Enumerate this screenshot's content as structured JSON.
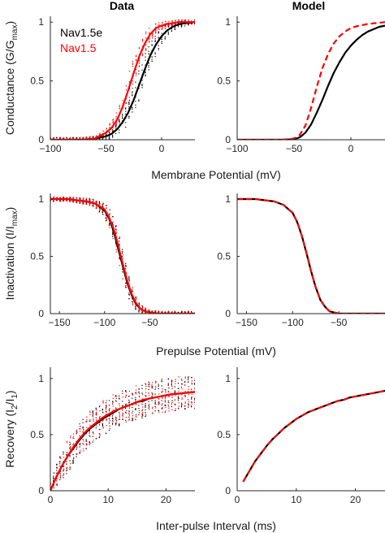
{
  "figure": {
    "column_titles": [
      "Data",
      "Model"
    ],
    "legend": [
      {
        "label": "Nav1.5e",
        "color": "#000000"
      },
      {
        "label": "Nav1.5",
        "color": "#ff0000"
      }
    ],
    "row_xlabels": [
      "Membrane Potential (mV)",
      "Prepulse Potential (mV)",
      "Inter-pulse Interval (ms)"
    ]
  },
  "chart_data": [
    {
      "type": "scatter",
      "panel": "Data",
      "row": 1,
      "ylabel_parts": [
        "Conductance (G/G",
        "max",
        ")"
      ],
      "xlim": [
        -100,
        30
      ],
      "ylim": [
        0,
        1.05
      ],
      "xticks": [
        -100,
        -50,
        0
      ],
      "yticks": [
        0,
        0.5,
        1
      ],
      "series": [
        {
          "name": "Nav1.5e",
          "color": "#000000",
          "style": "solid",
          "x": [
            -100,
            -90,
            -80,
            -70,
            -60,
            -50,
            -45,
            -40,
            -35,
            -30,
            -25,
            -20,
            -15,
            -10,
            -5,
            0,
            5,
            10,
            15,
            20,
            25,
            30
          ],
          "y": [
            0,
            0,
            0,
            0,
            0.01,
            0.03,
            0.05,
            0.09,
            0.15,
            0.23,
            0.34,
            0.47,
            0.6,
            0.72,
            0.81,
            0.88,
            0.93,
            0.96,
            0.98,
            0.99,
            0.995,
            1.0
          ]
        },
        {
          "name": "Nav1.5",
          "color": "#ff0000",
          "style": "solid",
          "x": [
            -100,
            -90,
            -80,
            -70,
            -60,
            -50,
            -45,
            -40,
            -35,
            -30,
            -25,
            -20,
            -15,
            -10,
            -5,
            0,
            5,
            10,
            15,
            20,
            25,
            30
          ],
          "y": [
            0,
            0,
            0,
            0,
            0.01,
            0.06,
            0.1,
            0.17,
            0.28,
            0.42,
            0.57,
            0.71,
            0.82,
            0.9,
            0.95,
            0.97,
            0.985,
            0.99,
            1.0,
            1.0,
            1.0,
            1.0
          ]
        }
      ]
    },
    {
      "type": "line",
      "panel": "Model",
      "row": 1,
      "xlim": [
        -100,
        30
      ],
      "ylim": [
        0,
        1.05
      ],
      "xticks": [
        -100,
        -50,
        0
      ],
      "yticks": [
        0,
        0.5,
        1
      ],
      "series": [
        {
          "color": "#000000",
          "style": "solid",
          "x": [
            -100,
            -90,
            -80,
            -70,
            -60,
            -50,
            -45,
            -40,
            -35,
            -30,
            -25,
            -20,
            -15,
            -10,
            -5,
            0,
            5,
            10,
            15,
            20,
            25,
            30
          ],
          "y": [
            0,
            0,
            0,
            0,
            0,
            0.005,
            0.02,
            0.06,
            0.13,
            0.23,
            0.34,
            0.46,
            0.57,
            0.66,
            0.74,
            0.8,
            0.85,
            0.89,
            0.92,
            0.94,
            0.96,
            0.97
          ]
        },
        {
          "color": "#ff0000",
          "style": "dashed",
          "x": [
            -100,
            -90,
            -80,
            -70,
            -60,
            -50,
            -45,
            -40,
            -35,
            -30,
            -25,
            -20,
            -15,
            -10,
            -5,
            0,
            5,
            10,
            15,
            20,
            25,
            30
          ],
          "y": [
            0,
            0,
            0,
            0,
            0,
            0.01,
            0.04,
            0.12,
            0.27,
            0.45,
            0.61,
            0.73,
            0.82,
            0.88,
            0.92,
            0.95,
            0.965,
            0.975,
            0.985,
            0.99,
            0.995,
            1.0
          ]
        }
      ]
    },
    {
      "type": "scatter",
      "panel": "Data",
      "row": 2,
      "ylabel_parts": [
        "Inactivation (I/I",
        "max",
        ")"
      ],
      "xlim": [
        -160,
        0
      ],
      "ylim": [
        0,
        1.05
      ],
      "xticks": [
        -150,
        -100,
        -50
      ],
      "yticks": [
        0,
        0.5,
        1
      ],
      "series": [
        {
          "name": "Nav1.5e",
          "color": "#000000",
          "style": "solid",
          "x": [
            -160,
            -150,
            -140,
            -130,
            -120,
            -110,
            -100,
            -95,
            -90,
            -85,
            -80,
            -75,
            -70,
            -65,
            -60,
            -55,
            -50,
            -40,
            -30,
            -20,
            -10,
            0
          ],
          "y": [
            1,
            1,
            1,
            0.99,
            0.98,
            0.96,
            0.9,
            0.83,
            0.72,
            0.57,
            0.42,
            0.27,
            0.16,
            0.08,
            0.04,
            0.02,
            0.01,
            0,
            0,
            0,
            0,
            0
          ]
        },
        {
          "name": "Nav1.5",
          "color": "#ff0000",
          "style": "solid",
          "x": [
            -160,
            -150,
            -140,
            -130,
            -120,
            -110,
            -100,
            -95,
            -90,
            -85,
            -80,
            -75,
            -70,
            -65,
            -60,
            -55,
            -50,
            -40,
            -30,
            -20,
            -10,
            0
          ],
          "y": [
            1,
            1,
            1,
            0.99,
            0.98,
            0.96,
            0.91,
            0.84,
            0.74,
            0.6,
            0.44,
            0.29,
            0.17,
            0.09,
            0.04,
            0.02,
            0.01,
            0,
            0,
            0,
            0,
            0
          ]
        }
      ]
    },
    {
      "type": "line",
      "panel": "Model",
      "row": 2,
      "xlim": [
        -160,
        0
      ],
      "ylim": [
        0,
        1.05
      ],
      "xticks": [
        -150,
        -100,
        -50
      ],
      "yticks": [
        0,
        0.5,
        1
      ],
      "series": [
        {
          "color": "#000000",
          "style": "solid",
          "x": [
            -160,
            -150,
            -140,
            -130,
            -120,
            -110,
            -100,
            -95,
            -90,
            -85,
            -80,
            -75,
            -70,
            -65,
            -60,
            -55,
            -50,
            -40,
            -30,
            -20,
            -10,
            0
          ],
          "y": [
            1,
            1,
            1,
            0.99,
            0.98,
            0.95,
            0.88,
            0.8,
            0.68,
            0.53,
            0.37,
            0.23,
            0.12,
            0.06,
            0.02,
            0.01,
            0,
            0,
            0,
            0,
            0,
            0
          ]
        },
        {
          "color": "#ff0000",
          "style": "dashed",
          "x": [
            -160,
            -150,
            -140,
            -130,
            -120,
            -110,
            -100,
            -95,
            -90,
            -85,
            -80,
            -75,
            -70,
            -65,
            -60,
            -55,
            -50,
            -40,
            -30,
            -20,
            -10,
            0
          ],
          "y": [
            1,
            1,
            1,
            0.99,
            0.98,
            0.95,
            0.88,
            0.8,
            0.68,
            0.53,
            0.37,
            0.23,
            0.12,
            0.06,
            0.02,
            0.01,
            0,
            0,
            0,
            0,
            0,
            0
          ]
        }
      ]
    },
    {
      "type": "scatter",
      "panel": "Data",
      "row": 3,
      "ylabel_parts": [
        "Recovery (I",
        "2",
        "/I",
        "1",
        ")"
      ],
      "xlim": [
        0,
        25
      ],
      "ylim": [
        0,
        1.1
      ],
      "xticks": [
        0,
        10,
        20
      ],
      "yticks": [
        0,
        0.5,
        1
      ],
      "series": [
        {
          "name": "Nav1.5e",
          "color": "#000000",
          "style": "solid",
          "x": [
            0,
            1,
            2,
            3,
            4,
            5,
            6,
            7,
            8,
            9,
            10,
            11,
            12,
            13,
            14,
            15,
            16,
            17,
            18,
            19,
            20,
            21,
            22,
            23,
            24,
            25
          ],
          "y": [
            0,
            0.12,
            0.22,
            0.31,
            0.38,
            0.45,
            0.51,
            0.56,
            0.6,
            0.64,
            0.67,
            0.7,
            0.73,
            0.75,
            0.77,
            0.79,
            0.8,
            0.82,
            0.83,
            0.84,
            0.85,
            0.86,
            0.865,
            0.87,
            0.875,
            0.88
          ]
        },
        {
          "name": "Nav1.5",
          "color": "#ff0000",
          "style": "solid",
          "x": [
            0,
            1,
            2,
            3,
            4,
            5,
            6,
            7,
            8,
            9,
            10,
            11,
            12,
            13,
            14,
            15,
            16,
            17,
            18,
            19,
            20,
            21,
            22,
            23,
            24,
            25
          ],
          "y": [
            0,
            0.12,
            0.22,
            0.31,
            0.39,
            0.46,
            0.52,
            0.57,
            0.61,
            0.65,
            0.68,
            0.71,
            0.73,
            0.75,
            0.77,
            0.79,
            0.81,
            0.82,
            0.83,
            0.84,
            0.85,
            0.86,
            0.865,
            0.87,
            0.875,
            0.88
          ]
        }
      ]
    },
    {
      "type": "line",
      "panel": "Model",
      "row": 3,
      "xlim": [
        0,
        25
      ],
      "ylim": [
        0,
        1.1
      ],
      "xticks": [
        0,
        10,
        20
      ],
      "yticks": [
        0,
        0.5,
        1
      ],
      "series": [
        {
          "color": "#000000",
          "style": "solid",
          "x": [
            1,
            2,
            3,
            4,
            5,
            6,
            7,
            8,
            9,
            10,
            11,
            12,
            13,
            14,
            15,
            16,
            17,
            18,
            19,
            20,
            21,
            22,
            23,
            24,
            25
          ],
          "y": [
            0.08,
            0.17,
            0.26,
            0.33,
            0.4,
            0.46,
            0.51,
            0.56,
            0.6,
            0.64,
            0.67,
            0.7,
            0.72,
            0.74,
            0.76,
            0.78,
            0.8,
            0.81,
            0.83,
            0.84,
            0.85,
            0.86,
            0.87,
            0.88,
            0.89
          ]
        },
        {
          "color": "#ff0000",
          "style": "dashed",
          "x": [
            1,
            2,
            3,
            4,
            5,
            6,
            7,
            8,
            9,
            10,
            11,
            12,
            13,
            14,
            15,
            16,
            17,
            18,
            19,
            20,
            21,
            22,
            23,
            24,
            25
          ],
          "y": [
            0.08,
            0.17,
            0.26,
            0.33,
            0.4,
            0.46,
            0.51,
            0.56,
            0.6,
            0.64,
            0.67,
            0.7,
            0.72,
            0.74,
            0.76,
            0.78,
            0.8,
            0.81,
            0.83,
            0.84,
            0.85,
            0.86,
            0.87,
            0.88,
            0.89
          ]
        }
      ]
    }
  ]
}
